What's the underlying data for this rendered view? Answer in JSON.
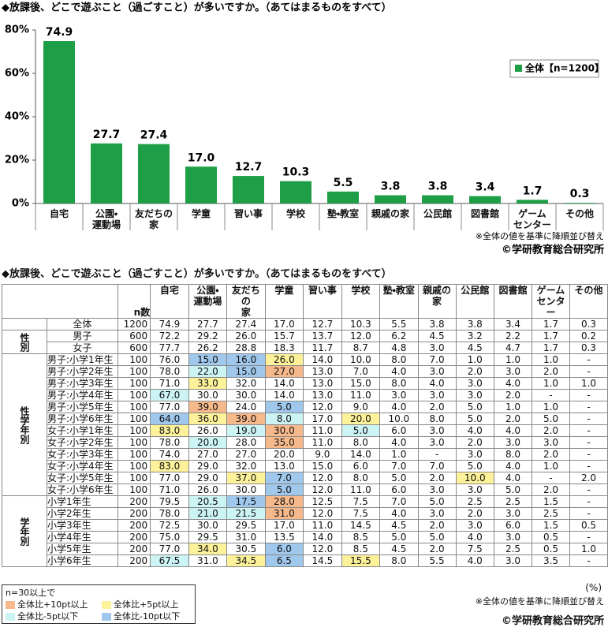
{
  "chart_data": {
    "type": "bar",
    "title": "◆放課後、どこで遊ぶこと（過ごすこと）が多いですか。（あてはまるものをすべて）",
    "categories": [
      "自宅",
      "公園・\n運動場",
      "友だちの\n家",
      "学童",
      "習い事",
      "学校",
      "塾・教室",
      "親戚の家",
      "公民館",
      "図書館",
      "ゲーム\nセンター",
      "その他"
    ],
    "series": [
      {
        "name": "全体【n=1200】",
        "color": "#1e9e46",
        "values": [
          74.9,
          27.7,
          27.4,
          17.0,
          12.7,
          10.3,
          5.5,
          3.8,
          3.8,
          3.4,
          1.7,
          0.3
        ],
        "value_labels": [
          "74.9",
          "27.7",
          "27.4",
          "17.0",
          "12.7",
          "10.3",
          "5.5",
          "3.8",
          "3.8",
          "3.4",
          "1.7",
          "0.3"
        ]
      }
    ],
    "ylim": [
      0,
      80
    ],
    "yticks": [
      {
        "value": 0,
        "label": "0%"
      },
      {
        "value": 20,
        "label": "20%"
      },
      {
        "value": 40,
        "label": "40%"
      },
      {
        "value": 60,
        "label": "60%"
      },
      {
        "value": 80,
        "label": "80%"
      }
    ],
    "grid": false,
    "legend": "upper right",
    "note": "※全体の値を基準に降順並び替え",
    "credit": "©学研教育総合研究所"
  },
  "table": {
    "title": "◆放課後、どこで遊ぶこと（過ごすこと）が多いですか。（あてはまるものをすべて）",
    "n_header": "n数",
    "columns": [
      "自宅",
      "公園・\n運動場",
      "友だちの\n家",
      "学童",
      "習い事",
      "学校",
      "塾・教室",
      "親戚の家",
      "公民館",
      "図書館",
      "ゲーム\nセンター",
      "その他"
    ],
    "groups": [
      {
        "rows": [
          {
            "label": "全体",
            "n": "1200",
            "values": [
              "74.9",
              "27.7",
              "27.4",
              "17.0",
              "12.7",
              "10.3",
              "5.5",
              "3.8",
              "3.8",
              "3.4",
              "1.7",
              "0.3"
            ]
          }
        ]
      },
      {
        "label": "性別",
        "rows": [
          {
            "label": "男子",
            "n": "600",
            "values": [
              "72.2",
              "29.2",
              "26.0",
              "15.7",
              "13.7",
              "12.0",
              "6.2",
              "4.5",
              "3.2",
              "2.2",
              "1.7",
              "0.2"
            ]
          },
          {
            "label": "女子",
            "n": "600",
            "values": [
              "77.7",
              "26.2",
              "28.8",
              "18.3",
              "11.7",
              "8.7",
              "4.8",
              "3.0",
              "4.5",
              "4.7",
              "1.7",
              "0.3"
            ]
          }
        ]
      },
      {
        "label": "性学年別",
        "rows": [
          {
            "label": "男子:小学1年生",
            "n": "100",
            "values": [
              "76.0",
              "15.0",
              "16.0",
              "26.0",
              "14.0",
              "10.0",
              "8.0",
              "7.0",
              "1.0",
              "1.0",
              "1.0",
              "-"
            ],
            "shade": {
              "1": 3,
              "2": 3,
              "3": 1
            }
          },
          {
            "label": "男子:小学2年生",
            "n": "100",
            "values": [
              "78.0",
              "22.0",
              "15.0",
              "27.0",
              "13.0",
              "7.0",
              "4.0",
              "3.0",
              "2.0",
              "3.0",
              "2.0",
              "-"
            ],
            "shade": {
              "1": 2,
              "2": 3,
              "3": 0
            }
          },
          {
            "label": "男子:小学3年生",
            "n": "100",
            "values": [
              "71.0",
              "33.0",
              "32.0",
              "14.0",
              "13.0",
              "15.0",
              "8.0",
              "4.0",
              "3.0",
              "4.0",
              "1.0",
              "1.0"
            ],
            "shade": {
              "1": 1
            }
          },
          {
            "label": "男子:小学4年生",
            "n": "100",
            "values": [
              "67.0",
              "30.0",
              "30.0",
              "14.0",
              "13.0",
              "11.0",
              "3.0",
              "3.0",
              "3.0",
              "2.0",
              "-",
              "-"
            ],
            "shade": {
              "0": 2
            }
          },
          {
            "label": "男子:小学5年生",
            "n": "100",
            "values": [
              "77.0",
              "39.0",
              "24.0",
              "5.0",
              "12.0",
              "9.0",
              "4.0",
              "2.0",
              "5.0",
              "1.0",
              "1.0",
              "-"
            ],
            "shade": {
              "1": 0,
              "3": 3
            }
          },
          {
            "label": "男子:小学6年生",
            "n": "100",
            "values": [
              "64.0",
              "36.0",
              "39.0",
              "8.0",
              "17.0",
              "20.0",
              "10.0",
              "8.0",
              "5.0",
              "2.0",
              "5.0",
              "-"
            ],
            "shade": {
              "0": 3,
              "1": 1,
              "2": 0,
              "3": 2,
              "5": 1
            }
          },
          {
            "label": "女子:小学1年生",
            "n": "100",
            "values": [
              "83.0",
              "26.0",
              "19.0",
              "30.0",
              "11.0",
              "5.0",
              "6.0",
              "3.0",
              "4.0",
              "4.0",
              "2.0",
              "-"
            ],
            "shade": {
              "0": 1,
              "2": 2,
              "3": 0,
              "5": 2
            }
          },
          {
            "label": "女子:小学2年生",
            "n": "100",
            "values": [
              "78.0",
              "20.0",
              "28.0",
              "35.0",
              "11.0",
              "8.0",
              "4.0",
              "3.0",
              "2.0",
              "3.0",
              "3.0",
              "-"
            ],
            "shade": {
              "1": 2,
              "3": 0
            }
          },
          {
            "label": "女子:小学3年生",
            "n": "100",
            "values": [
              "74.0",
              "27.0",
              "27.0",
              "20.0",
              "9.0",
              "14.0",
              "1.0",
              "-",
              "3.0",
              "8.0",
              "2.0",
              "-"
            ]
          },
          {
            "label": "女子:小学4年生",
            "n": "100",
            "values": [
              "83.0",
              "29.0",
              "32.0",
              "13.0",
              "15.0",
              "6.0",
              "7.0",
              "7.0",
              "5.0",
              "4.0",
              "1.0",
              "-"
            ],
            "shade": {
              "0": 1
            }
          },
          {
            "label": "女子:小学5年生",
            "n": "100",
            "values": [
              "77.0",
              "29.0",
              "37.0",
              "7.0",
              "12.0",
              "8.0",
              "5.0",
              "2.0",
              "10.0",
              "4.0",
              "-",
              "2.0"
            ],
            "shade": {
              "2": 1,
              "3": 3,
              "8": 1
            }
          },
          {
            "label": "女子:小学6年生",
            "n": "100",
            "values": [
              "71.0",
              "26.0",
              "30.0",
              "5.0",
              "12.0",
              "11.0",
              "6.0",
              "3.0",
              "3.0",
              "5.0",
              "2.0",
              "-"
            ],
            "shade": {
              "3": 3
            }
          }
        ]
      },
      {
        "label": "学年別",
        "rows": [
          {
            "label": "小学1年生",
            "n": "200",
            "values": [
              "79.5",
              "20.5",
              "17.5",
              "28.0",
              "12.5",
              "7.5",
              "7.0",
              "5.0",
              "2.5",
              "2.5",
              "1.5",
              "-"
            ],
            "shade": {
              "1": 2,
              "2": 3,
              "3": 0
            }
          },
          {
            "label": "小学2年生",
            "n": "200",
            "values": [
              "78.0",
              "21.0",
              "21.5",
              "31.0",
              "12.0",
              "7.5",
              "4.0",
              "3.0",
              "2.0",
              "3.0",
              "2.5",
              "-"
            ],
            "shade": {
              "1": 2,
              "2": 2,
              "3": 0
            }
          },
          {
            "label": "小学3年生",
            "n": "200",
            "values": [
              "72.5",
              "30.0",
              "29.5",
              "17.0",
              "11.0",
              "14.5",
              "4.5",
              "2.0",
              "3.0",
              "6.0",
              "1.5",
              "0.5"
            ]
          },
          {
            "label": "小学4年生",
            "n": "200",
            "values": [
              "75.0",
              "29.5",
              "31.0",
              "13.5",
              "14.0",
              "8.5",
              "5.0",
              "5.0",
              "4.0",
              "3.0",
              "0.5",
              "-"
            ]
          },
          {
            "label": "小学5年生",
            "n": "200",
            "values": [
              "77.0",
              "34.0",
              "30.5",
              "6.0",
              "12.0",
              "8.5",
              "4.5",
              "2.0",
              "7.5",
              "2.5",
              "0.5",
              "1.0"
            ],
            "shade": {
              "1": 1,
              "3": 3
            }
          },
          {
            "label": "小学6年生",
            "n": "200",
            "values": [
              "67.5",
              "31.0",
              "34.5",
              "6.5",
              "14.5",
              "15.5",
              "8.0",
              "5.5",
              "4.0",
              "3.0",
              "3.5",
              "-"
            ],
            "shade": {
              "0": 2,
              "2": 1,
              "3": 3,
              "5": 1
            }
          }
        ]
      }
    ],
    "shade_legend": {
      "title": "n=30以上で",
      "items": [
        {
          "label": "全体比+10pt以上",
          "color": "#f6b98c"
        },
        {
          "label": "全体比+5pt以上",
          "color": "#fdf29a"
        },
        {
          "label": "全体比-5pt以下",
          "color": "#cdf4f4"
        },
        {
          "label": "全体比-10pt以下",
          "color": "#9fc8ec"
        }
      ]
    },
    "unit": "(%)",
    "note": "※全体の値を基準に降順並び替え",
    "credit": "©学研教育総合研究所"
  }
}
